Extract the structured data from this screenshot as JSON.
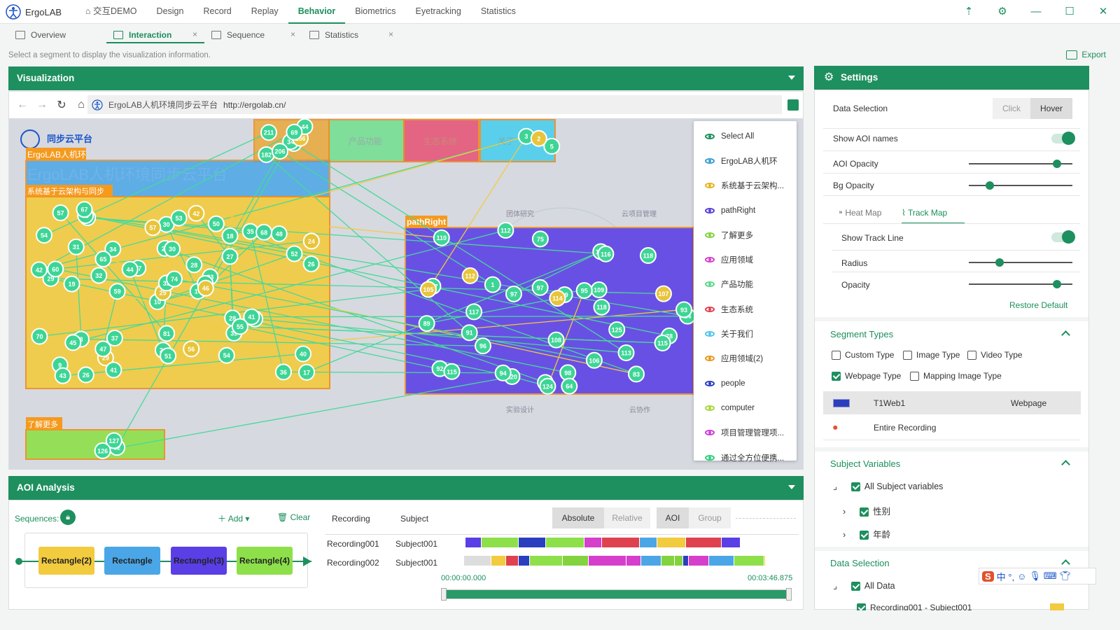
{
  "app": {
    "name": "ErgoLAB",
    "project": "交互DEMO"
  },
  "menu": [
    "Design",
    "Record",
    "Replay",
    "Behavior",
    "Biometrics",
    "Eyetracking",
    "Statistics"
  ],
  "menu_active": "Behavior",
  "subtabs": [
    {
      "label": "Overview",
      "closable": false
    },
    {
      "label": "Interaction",
      "closable": true
    },
    {
      "label": "Sequence",
      "closable": true
    },
    {
      "label": "Statistics",
      "closable": true
    }
  ],
  "hint": "Select a segment to display the visualization information.",
  "export_label": "Export",
  "viz": {
    "title": "Visualization",
    "site_name": "ErgoLAB人机环境同步云平台",
    "url": "http://ergolab.cn/",
    "aoi_labels": [
      "ErgoLAB人机环",
      "系统基于云架构与同步",
      "pathRight",
      "了解更多"
    ],
    "page_texts": [
      "同步云平台",
      "ErgoLAB人机环境同步云平台",
      "产品功能",
      "生态系统",
      "关于",
      "团体研究",
      "云项目管理",
      "实验设计",
      "云协作"
    ],
    "fixations_left": [
      "1",
      "211",
      "34",
      "182",
      "156",
      "206",
      "44",
      "69",
      "18",
      "14",
      "15",
      "17",
      "19",
      "24",
      "10",
      "27",
      "26",
      "25",
      "28",
      "8",
      "17",
      "9",
      "29",
      "30",
      "33",
      "32",
      "31",
      "30",
      "29",
      "28",
      "26",
      "25",
      "24",
      "33",
      "34",
      "35",
      "37",
      "36",
      "40",
      "41",
      "42",
      "44",
      "32",
      "39",
      "41",
      "42",
      "40",
      "43",
      "51",
      "46",
      "45",
      "52",
      "54",
      "55",
      "54",
      "47",
      "49",
      "57",
      "56",
      "48",
      "53",
      "59",
      "60",
      "65",
      "68",
      "67",
      "50",
      "57",
      "74",
      "70",
      "81"
    ],
    "fixations_right": [
      "120",
      "125",
      "1",
      "92",
      "110",
      "112",
      "89",
      "97",
      "98",
      "99",
      "115",
      "118",
      "78",
      "105",
      "107",
      "108",
      "83",
      "64",
      "106",
      "75",
      "84",
      "109",
      "113",
      "114",
      "115",
      "117",
      "124",
      "120",
      "116",
      "117",
      "112",
      "93",
      "105",
      "91",
      "96",
      "94",
      "95",
      "118",
      "97",
      "5",
      "3",
      "2",
      "62",
      "127",
      "126"
    ],
    "legend": [
      {
        "label": "Select All",
        "color": "#1e8f5f"
      },
      {
        "label": "ErgoLAB人机环",
        "color": "#3b9fd1"
      },
      {
        "label": "系统基于云架构...",
        "color": "#e6b41e"
      },
      {
        "label": "pathRight",
        "color": "#5b3fd6"
      },
      {
        "label": "了解更多",
        "color": "#82d33e"
      },
      {
        "label": "应用领域",
        "color": "#d63fcc"
      },
      {
        "label": "产品功能",
        "color": "#5bd98a"
      },
      {
        "label": "生态系统",
        "color": "#e0414e"
      },
      {
        "label": "关于我们",
        "color": "#4fc7e6"
      },
      {
        "label": "应用领域(2)",
        "color": "#e69a1e"
      },
      {
        "label": "people",
        "color": "#2a3fbf"
      },
      {
        "label": "computer",
        "color": "#a9d63e"
      },
      {
        "label": "项目管理管理项...",
        "color": "#c93fd6"
      },
      {
        "label": "通过全方位便携...",
        "color": "#2fd07a"
      }
    ]
  },
  "settings": {
    "title": "Settings",
    "data_selection": "Data Selection",
    "click": "Click",
    "hover": "Hover",
    "show_aoi_names": "Show AOI names",
    "aoi_opacity": "AOI Opacity",
    "aoi_opacity_value": 0.85,
    "bg_opacity": "Bg Opacity",
    "bg_opacity_value": 0.2,
    "heat_map": "Heat Map",
    "track_map": "Track Map",
    "show_track_line": "Show Track Line",
    "radius": "Radius",
    "radius_value": 0.3,
    "opacity": "Opacity",
    "opacity_value": 0.85,
    "restore": "Restore Default",
    "segment_types": "Segment Types",
    "types": [
      {
        "label": "Custom Type",
        "checked": false
      },
      {
        "label": "Image Type",
        "checked": false
      },
      {
        "label": "Video Type",
        "checked": false
      },
      {
        "label": "Webpage Type",
        "checked": true
      },
      {
        "label": "Mapping Image Type",
        "checked": false
      }
    ],
    "segments": [
      {
        "name": "T1Web1",
        "type": "Webpage"
      },
      {
        "name": "Entire Recording",
        "type": ""
      }
    ],
    "subject_variables": "Subject Variables",
    "all_subject_vars": "All Subject variables",
    "vars": [
      "性别",
      "年龄"
    ],
    "data_selection2": "Data Selection",
    "all_data": "All Data",
    "recording_row": "Recording001 - Subject001"
  },
  "aoi": {
    "title": "AOI Analysis",
    "sequences": "Sequences:",
    "add": "Add",
    "clear": "Clear",
    "col_recording": "Recording",
    "col_subject": "Subject",
    "absolute": "Absolute",
    "relative": "Relative",
    "aoi": "AOI",
    "group": "Group",
    "nodes": [
      "Rectangle(2)",
      "Rectangle",
      "Rectangle(3)",
      "Rectangle(4)"
    ],
    "rows": [
      {
        "recording": "Recording001",
        "subject": "Subject001"
      },
      {
        "recording": "Recording002",
        "subject": "Subject001"
      }
    ],
    "time_start": "00:00:00.000",
    "time_end": "00:03:46.875"
  },
  "ime": {
    "glyphs": "中 °,"
  }
}
